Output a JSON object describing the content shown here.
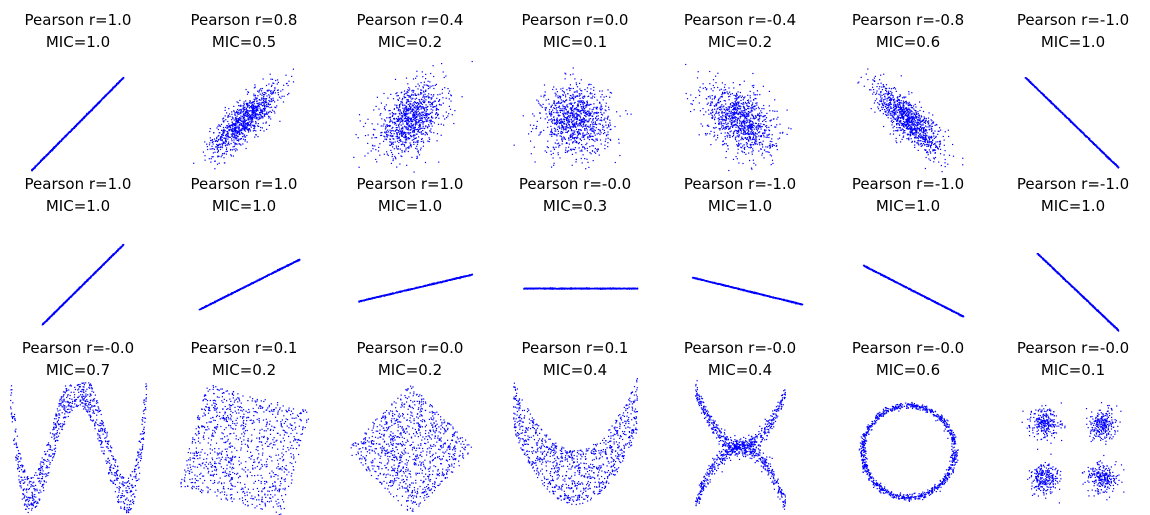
{
  "chart_data": [
    {
      "type": "scatter",
      "title": "Pearson r=1.0",
      "subtitle": "MIC=1.0",
      "shape": "line",
      "pearson_r": 1.0,
      "mic": 1.0,
      "n": 1000
    },
    {
      "type": "scatter",
      "title": "Pearson r=0.8",
      "subtitle": "MIC=0.5",
      "shape": "gaussian",
      "pearson_r": 0.8,
      "mic": 0.5,
      "n": 1000
    },
    {
      "type": "scatter",
      "title": "Pearson r=0.4",
      "subtitle": "MIC=0.2",
      "shape": "gaussian",
      "pearson_r": 0.4,
      "mic": 0.2,
      "n": 1000
    },
    {
      "type": "scatter",
      "title": "Pearson r=0.0",
      "subtitle": "MIC=0.1",
      "shape": "gaussian",
      "pearson_r": 0.0,
      "mic": 0.1,
      "n": 1000
    },
    {
      "type": "scatter",
      "title": "Pearson r=-0.4",
      "subtitle": "MIC=0.2",
      "shape": "gaussian",
      "pearson_r": -0.4,
      "mic": 0.2,
      "n": 1000
    },
    {
      "type": "scatter",
      "title": "Pearson r=-0.8",
      "subtitle": "MIC=0.6",
      "shape": "gaussian",
      "pearson_r": -0.8,
      "mic": 0.6,
      "n": 1000
    },
    {
      "type": "scatter",
      "title": "Pearson r=-1.0",
      "subtitle": "MIC=1.0",
      "shape": "line",
      "pearson_r": -1.0,
      "mic": 1.0,
      "n": 1000
    },
    {
      "type": "scatter",
      "title": "Pearson r=1.0",
      "subtitle": "MIC=1.0",
      "shape": "line",
      "pearson_r": 1.0,
      "mic": 1.0,
      "n": 1000
    },
    {
      "type": "scatter",
      "title": "Pearson r=1.0",
      "subtitle": "MIC=1.0",
      "shape": "line",
      "pearson_r": 1.0,
      "mic": 1.0,
      "n": 1000
    },
    {
      "type": "scatter",
      "title": "Pearson r=1.0",
      "subtitle": "MIC=1.0",
      "shape": "line",
      "pearson_r": 1.0,
      "mic": 1.0,
      "n": 1000
    },
    {
      "type": "scatter",
      "title": "Pearson r=-0.0",
      "subtitle": "MIC=0.3",
      "shape": "line",
      "pearson_r": -0.0,
      "mic": 0.3,
      "n": 1000
    },
    {
      "type": "scatter",
      "title": "Pearson r=-1.0",
      "subtitle": "MIC=1.0",
      "shape": "line",
      "pearson_r": -1.0,
      "mic": 1.0,
      "n": 1000
    },
    {
      "type": "scatter",
      "title": "Pearson r=-1.0",
      "subtitle": "MIC=1.0",
      "shape": "line",
      "pearson_r": -1.0,
      "mic": 1.0,
      "n": 1000
    },
    {
      "type": "scatter",
      "title": "Pearson r=-1.0",
      "subtitle": "MIC=1.0",
      "shape": "line",
      "pearson_r": -1.0,
      "mic": 1.0,
      "n": 1000
    },
    {
      "type": "scatter",
      "title": "Pearson r=-0.0",
      "subtitle": "MIC=0.7",
      "shape": "wave",
      "pearson_r": -0.0,
      "mic": 0.7,
      "n": 1000
    },
    {
      "type": "scatter",
      "title": "Pearson r=0.1",
      "subtitle": "MIC=0.2",
      "shape": "rotated-square",
      "pearson_r": 0.1,
      "mic": 0.2,
      "n": 1000
    },
    {
      "type": "scatter",
      "title": "Pearson r=0.0",
      "subtitle": "MIC=0.2",
      "shape": "diamond",
      "pearson_r": 0.0,
      "mic": 0.2,
      "n": 1000
    },
    {
      "type": "scatter",
      "title": "Pearson r=0.1",
      "subtitle": "MIC=0.4",
      "shape": "parabola",
      "pearson_r": 0.1,
      "mic": 0.4,
      "n": 1000
    },
    {
      "type": "scatter",
      "title": "Pearson r=-0.0",
      "subtitle": "MIC=0.4",
      "shape": "x-curves",
      "pearson_r": -0.0,
      "mic": 0.4,
      "n": 1000
    },
    {
      "type": "scatter",
      "title": "Pearson r=-0.0",
      "subtitle": "MIC=0.6",
      "shape": "ring",
      "pearson_r": -0.0,
      "mic": 0.6,
      "n": 1000
    },
    {
      "type": "scatter",
      "title": "Pearson r=-0.0",
      "subtitle": "MIC=0.1",
      "shape": "four-clusters",
      "pearson_r": -0.0,
      "mic": 0.1,
      "n": 1000
    }
  ],
  "colors": {
    "points": "#0000ff",
    "text": "#000000",
    "background": "#ffffff"
  }
}
